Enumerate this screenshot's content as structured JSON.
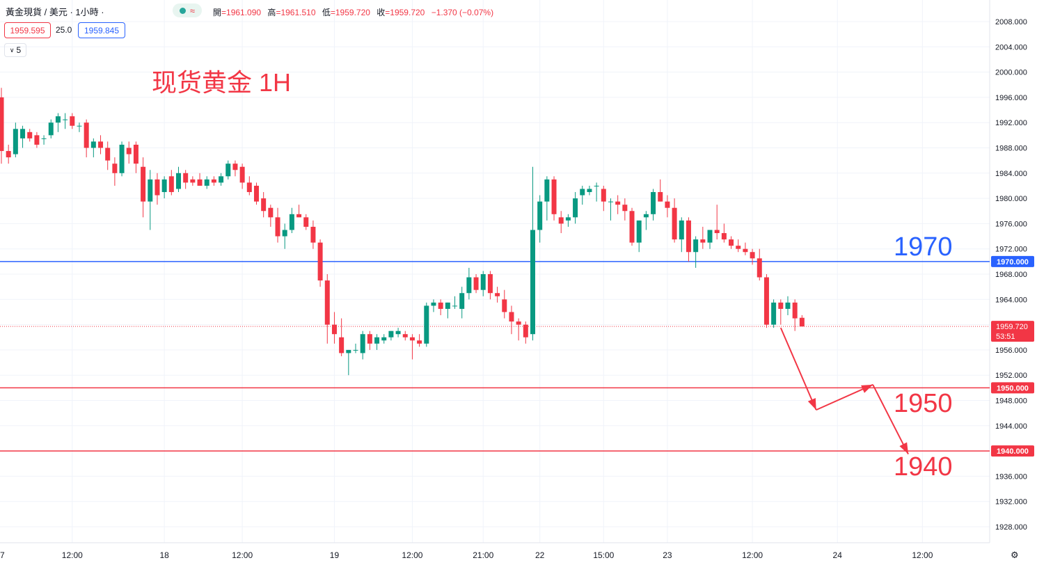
{
  "header": {
    "symbol": "黃金現貨 / 美元 · 1小時 ·",
    "status_icon": "market-open-dot-icon",
    "approx_icon": "≈",
    "ohlc": [
      {
        "label": "開",
        "value": "=1961.090"
      },
      {
        "label": "高",
        "value": "=1961.510"
      },
      {
        "label": "低",
        "value": "=1959.720"
      },
      {
        "label": "收",
        "value": "=1959.720"
      },
      {
        "label": "",
        "value": "−1.370 (−0.07%)"
      }
    ]
  },
  "trade": {
    "sell": "1959.595",
    "spread": "25.0",
    "buy": "1959.845"
  },
  "indicators_toggle": {
    "icon": "chevron-down-icon",
    "count": "5"
  },
  "annotation_title": "现货黄金 1H",
  "levels": [
    {
      "value": 1970,
      "label": "1970",
      "axis_label": "1970.000",
      "color": "#2962ff"
    },
    {
      "value": 1950,
      "label": "1950",
      "axis_label": "1950.000",
      "color": "#f23645"
    },
    {
      "value": 1940,
      "label": "1940",
      "axis_label": "1940.000",
      "color": "#f23645"
    }
  ],
  "last_price": {
    "value": 1959.72,
    "label": "1959.720",
    "countdown": "53:51"
  },
  "colors": {
    "up": "#089981",
    "down": "#f23645",
    "grid": "#f0f3fa"
  },
  "chart_data": {
    "type": "candlestick",
    "timeframe": "1H",
    "ylim": [
      1926,
      2010
    ],
    "y_ticks": [
      "2008.000",
      "2004.000",
      "2000.000",
      "1996.000",
      "1992.000",
      "1988.000",
      "1984.000",
      "1980.000",
      "1976.000",
      "1972.000",
      "1968.000",
      "1964.000",
      "1960.000",
      "1956.000",
      "1952.000",
      "1948.000",
      "1944.000",
      "1940.000",
      "1936.000",
      "1932.000",
      "1928.000"
    ],
    "x_ticks": [
      {
        "bar": -1,
        "label": "7"
      },
      {
        "bar": 10,
        "label": "12:00"
      },
      {
        "bar": 23,
        "label": "18"
      },
      {
        "bar": 34,
        "label": "12:00"
      },
      {
        "bar": 47,
        "label": "19"
      },
      {
        "bar": 58,
        "label": "12:00"
      },
      {
        "bar": 68,
        "label": "21:00"
      },
      {
        "bar": 76,
        "label": "22"
      },
      {
        "bar": 85,
        "label": "15:00"
      },
      {
        "bar": 94,
        "label": "23"
      },
      {
        "bar": 106,
        "label": "12:00"
      },
      {
        "bar": 118,
        "label": "24"
      },
      {
        "bar": 130,
        "label": "12:00"
      }
    ],
    "candles": [
      [
        1996,
        1997.5,
        1985.5,
        1987.5
      ],
      [
        1987.5,
        1988.5,
        1985.5,
        1986.5
      ],
      [
        1987,
        1992,
        1986.5,
        1991
      ],
      [
        1989.5,
        1991.5,
        1988,
        1991
      ],
      [
        1990.5,
        1991,
        1989,
        1989.5
      ],
      [
        1990,
        1990.5,
        1988,
        1988.5
      ],
      [
        1989.5,
        1990,
        1988.5,
        1989.5
      ],
      [
        1990,
        1992.5,
        1989.5,
        1992
      ],
      [
        1992,
        1993.5,
        1990.5,
        1993
      ],
      [
        1992.5,
        1993.5,
        1991,
        1992.5
      ],
      [
        1993,
        1993.5,
        1991,
        1991.5
      ],
      [
        1991.5,
        1992,
        1990.5,
        1991.5
      ],
      [
        1992,
        1992.5,
        1986.5,
        1988
      ],
      [
        1988,
        1989.5,
        1986.5,
        1989
      ],
      [
        1989,
        1990,
        1987,
        1988
      ],
      [
        1988,
        1989,
        1984.5,
        1986
      ],
      [
        1985.5,
        1986.5,
        1982,
        1984
      ],
      [
        1984,
        1989,
        1983.5,
        1988.5
      ],
      [
        1988,
        1989,
        1985.5,
        1987
      ],
      [
        1988.5,
        1989,
        1984,
        1985.5
      ],
      [
        1985,
        1986.5,
        1977,
        1979.5
      ],
      [
        1979.5,
        1984.5,
        1975,
        1983
      ],
      [
        1983,
        1984,
        1979,
        1980.5
      ],
      [
        1981,
        1983.5,
        1980,
        1983
      ],
      [
        1983.5,
        1984.5,
        1980.5,
        1981
      ],
      [
        1981.5,
        1985,
        1981,
        1984
      ],
      [
        1984,
        1984.5,
        1981.5,
        1982.5
      ],
      [
        1983,
        1983.5,
        1982,
        1982.5
      ],
      [
        1983,
        1984,
        1982,
        1982
      ],
      [
        1982,
        1983.5,
        1981.5,
        1983
      ],
      [
        1983,
        1983.5,
        1982,
        1982.5
      ],
      [
        1982.5,
        1984,
        1982,
        1983.5
      ],
      [
        1983.5,
        1986,
        1983,
        1985.5
      ],
      [
        1985.5,
        1986,
        1983.5,
        1984.5
      ],
      [
        1985,
        1985.5,
        1981.5,
        1982.5
      ],
      [
        1982.5,
        1983.5,
        1980.5,
        1981
      ],
      [
        1982,
        1982.5,
        1979,
        1979.5
      ],
      [
        1980,
        1981,
        1977,
        1978
      ],
      [
        1978.5,
        1979,
        1975.5,
        1977
      ],
      [
        1977,
        1978.5,
        1973,
        1974
      ],
      [
        1974,
        1976,
        1972,
        1975
      ],
      [
        1975,
        1978.5,
        1974.5,
        1977.5
      ],
      [
        1977.5,
        1979,
        1977,
        1977
      ],
      [
        1977,
        1977.5,
        1975,
        1975.5
      ],
      [
        1975.5,
        1976.5,
        1972,
        1973
      ],
      [
        1973,
        1973.5,
        1966,
        1967
      ],
      [
        1967,
        1968,
        1957,
        1960
      ],
      [
        1960,
        1962,
        1957,
        1958.5
      ],
      [
        1958,
        1961,
        1955,
        1955.5
      ],
      [
        1955.5,
        1956,
        1952,
        1956
      ],
      [
        1956,
        1957,
        1955.5,
        1956
      ],
      [
        1955.5,
        1959,
        1954.5,
        1958.5
      ],
      [
        1958.5,
        1959,
        1956,
        1957
      ],
      [
        1957,
        1958.5,
        1956,
        1958
      ],
      [
        1957.5,
        1958.5,
        1957,
        1958
      ],
      [
        1958,
        1959,
        1957.5,
        1959
      ],
      [
        1958.5,
        1959.5,
        1958,
        1959
      ],
      [
        1958.5,
        1959,
        1957.5,
        1958
      ],
      [
        1958,
        1958.5,
        1954.5,
        1957.5
      ],
      [
        1957.5,
        1958.5,
        1956.5,
        1957
      ],
      [
        1957,
        1963.5,
        1956.5,
        1963
      ],
      [
        1963,
        1964,
        1962,
        1963.5
      ],
      [
        1963.5,
        1964,
        1961.5,
        1962.5
      ],
      [
        1962.5,
        1963.5,
        1961,
        1963.5
      ],
      [
        1963,
        1964.5,
        1962.5,
        1963
      ],
      [
        1962.5,
        1966,
        1961,
        1965
      ],
      [
        1965,
        1969,
        1964,
        1967.5
      ],
      [
        1967.5,
        1968,
        1965,
        1965.5
      ],
      [
        1965.5,
        1968.5,
        1964.5,
        1968
      ],
      [
        1968,
        1968.5,
        1964,
        1965
      ],
      [
        1965,
        1966,
        1963.5,
        1964.5
      ],
      [
        1964,
        1965.5,
        1961,
        1962
      ],
      [
        1962,
        1963,
        1958.5,
        1960.5
      ],
      [
        1960.5,
        1961,
        1957.5,
        1960
      ],
      [
        1960,
        1960.5,
        1957,
        1958
      ],
      [
        1958.5,
        1985,
        1957.5,
        1975
      ],
      [
        1975,
        1980.5,
        1973,
        1979.5
      ],
      [
        1979.5,
        1983.5,
        1976.5,
        1983
      ],
      [
        1983,
        1983.5,
        1976.5,
        1977.5
      ],
      [
        1977,
        1978,
        1974.5,
        1976
      ],
      [
        1976.5,
        1977.5,
        1975.5,
        1977
      ],
      [
        1977,
        1981,
        1976,
        1980
      ],
      [
        1980.5,
        1982,
        1979,
        1981.5
      ],
      [
        1981,
        1982,
        1980.5,
        1981.5
      ],
      [
        1982,
        1982.5,
        1979.5,
        1982
      ],
      [
        1981.5,
        1982,
        1978,
        1979.5
      ],
      [
        1979.5,
        1980,
        1976.5,
        1979.5
      ],
      [
        1979.5,
        1980.5,
        1977.5,
        1979
      ],
      [
        1979,
        1980,
        1976.5,
        1978
      ],
      [
        1978,
        1978.5,
        1972.5,
        1973
      ],
      [
        1973,
        1976.5,
        1971.5,
        1976.5
      ],
      [
        1977,
        1978,
        1975,
        1977.5
      ],
      [
        1977.5,
        1981.5,
        1976.5,
        1981
      ],
      [
        1981,
        1983,
        1979.5,
        1979.5
      ],
      [
        1979.5,
        1980.5,
        1977,
        1978.5
      ],
      [
        1978.5,
        1980,
        1973,
        1973.5
      ],
      [
        1973.5,
        1977,
        1971.5,
        1976.5
      ],
      [
        1976.5,
        1977,
        1970,
        1971.5
      ],
      [
        1971.5,
        1974,
        1969,
        1973.5
      ],
      [
        1973.5,
        1975.5,
        1972,
        1973
      ],
      [
        1973,
        1975,
        1972,
        1975
      ],
      [
        1975,
        1979,
        1973.5,
        1974.5
      ],
      [
        1974.5,
        1976,
        1973,
        1973.5
      ],
      [
        1973.5,
        1974,
        1972,
        1972.5
      ],
      [
        1972.5,
        1973.5,
        1971.5,
        1972
      ],
      [
        1972,
        1973,
        1971,
        1971.5
      ],
      [
        1971.5,
        1972,
        1969.5,
        1970.5
      ],
      [
        1970.5,
        1972,
        1967,
        1967.5
      ],
      [
        1967.5,
        1968,
        1959.5,
        1960
      ],
      [
        1960,
        1964,
        1959.5,
        1963.5
      ],
      [
        1963.5,
        1964,
        1960,
        1962.5
      ],
      [
        1962.5,
        1964.5,
        1961.5,
        1963.5
      ],
      [
        1963.5,
        1964,
        1959,
        1961
      ],
      [
        1961.09,
        1961.51,
        1959.72,
        1959.72
      ]
    ],
    "projection_path": [
      {
        "bar": 110,
        "price": 1959.5
      },
      {
        "bar": 115,
        "price": 1946.5
      },
      {
        "bar": 123,
        "price": 1950.5
      },
      {
        "bar": 128,
        "price": 1939.5
      }
    ]
  }
}
